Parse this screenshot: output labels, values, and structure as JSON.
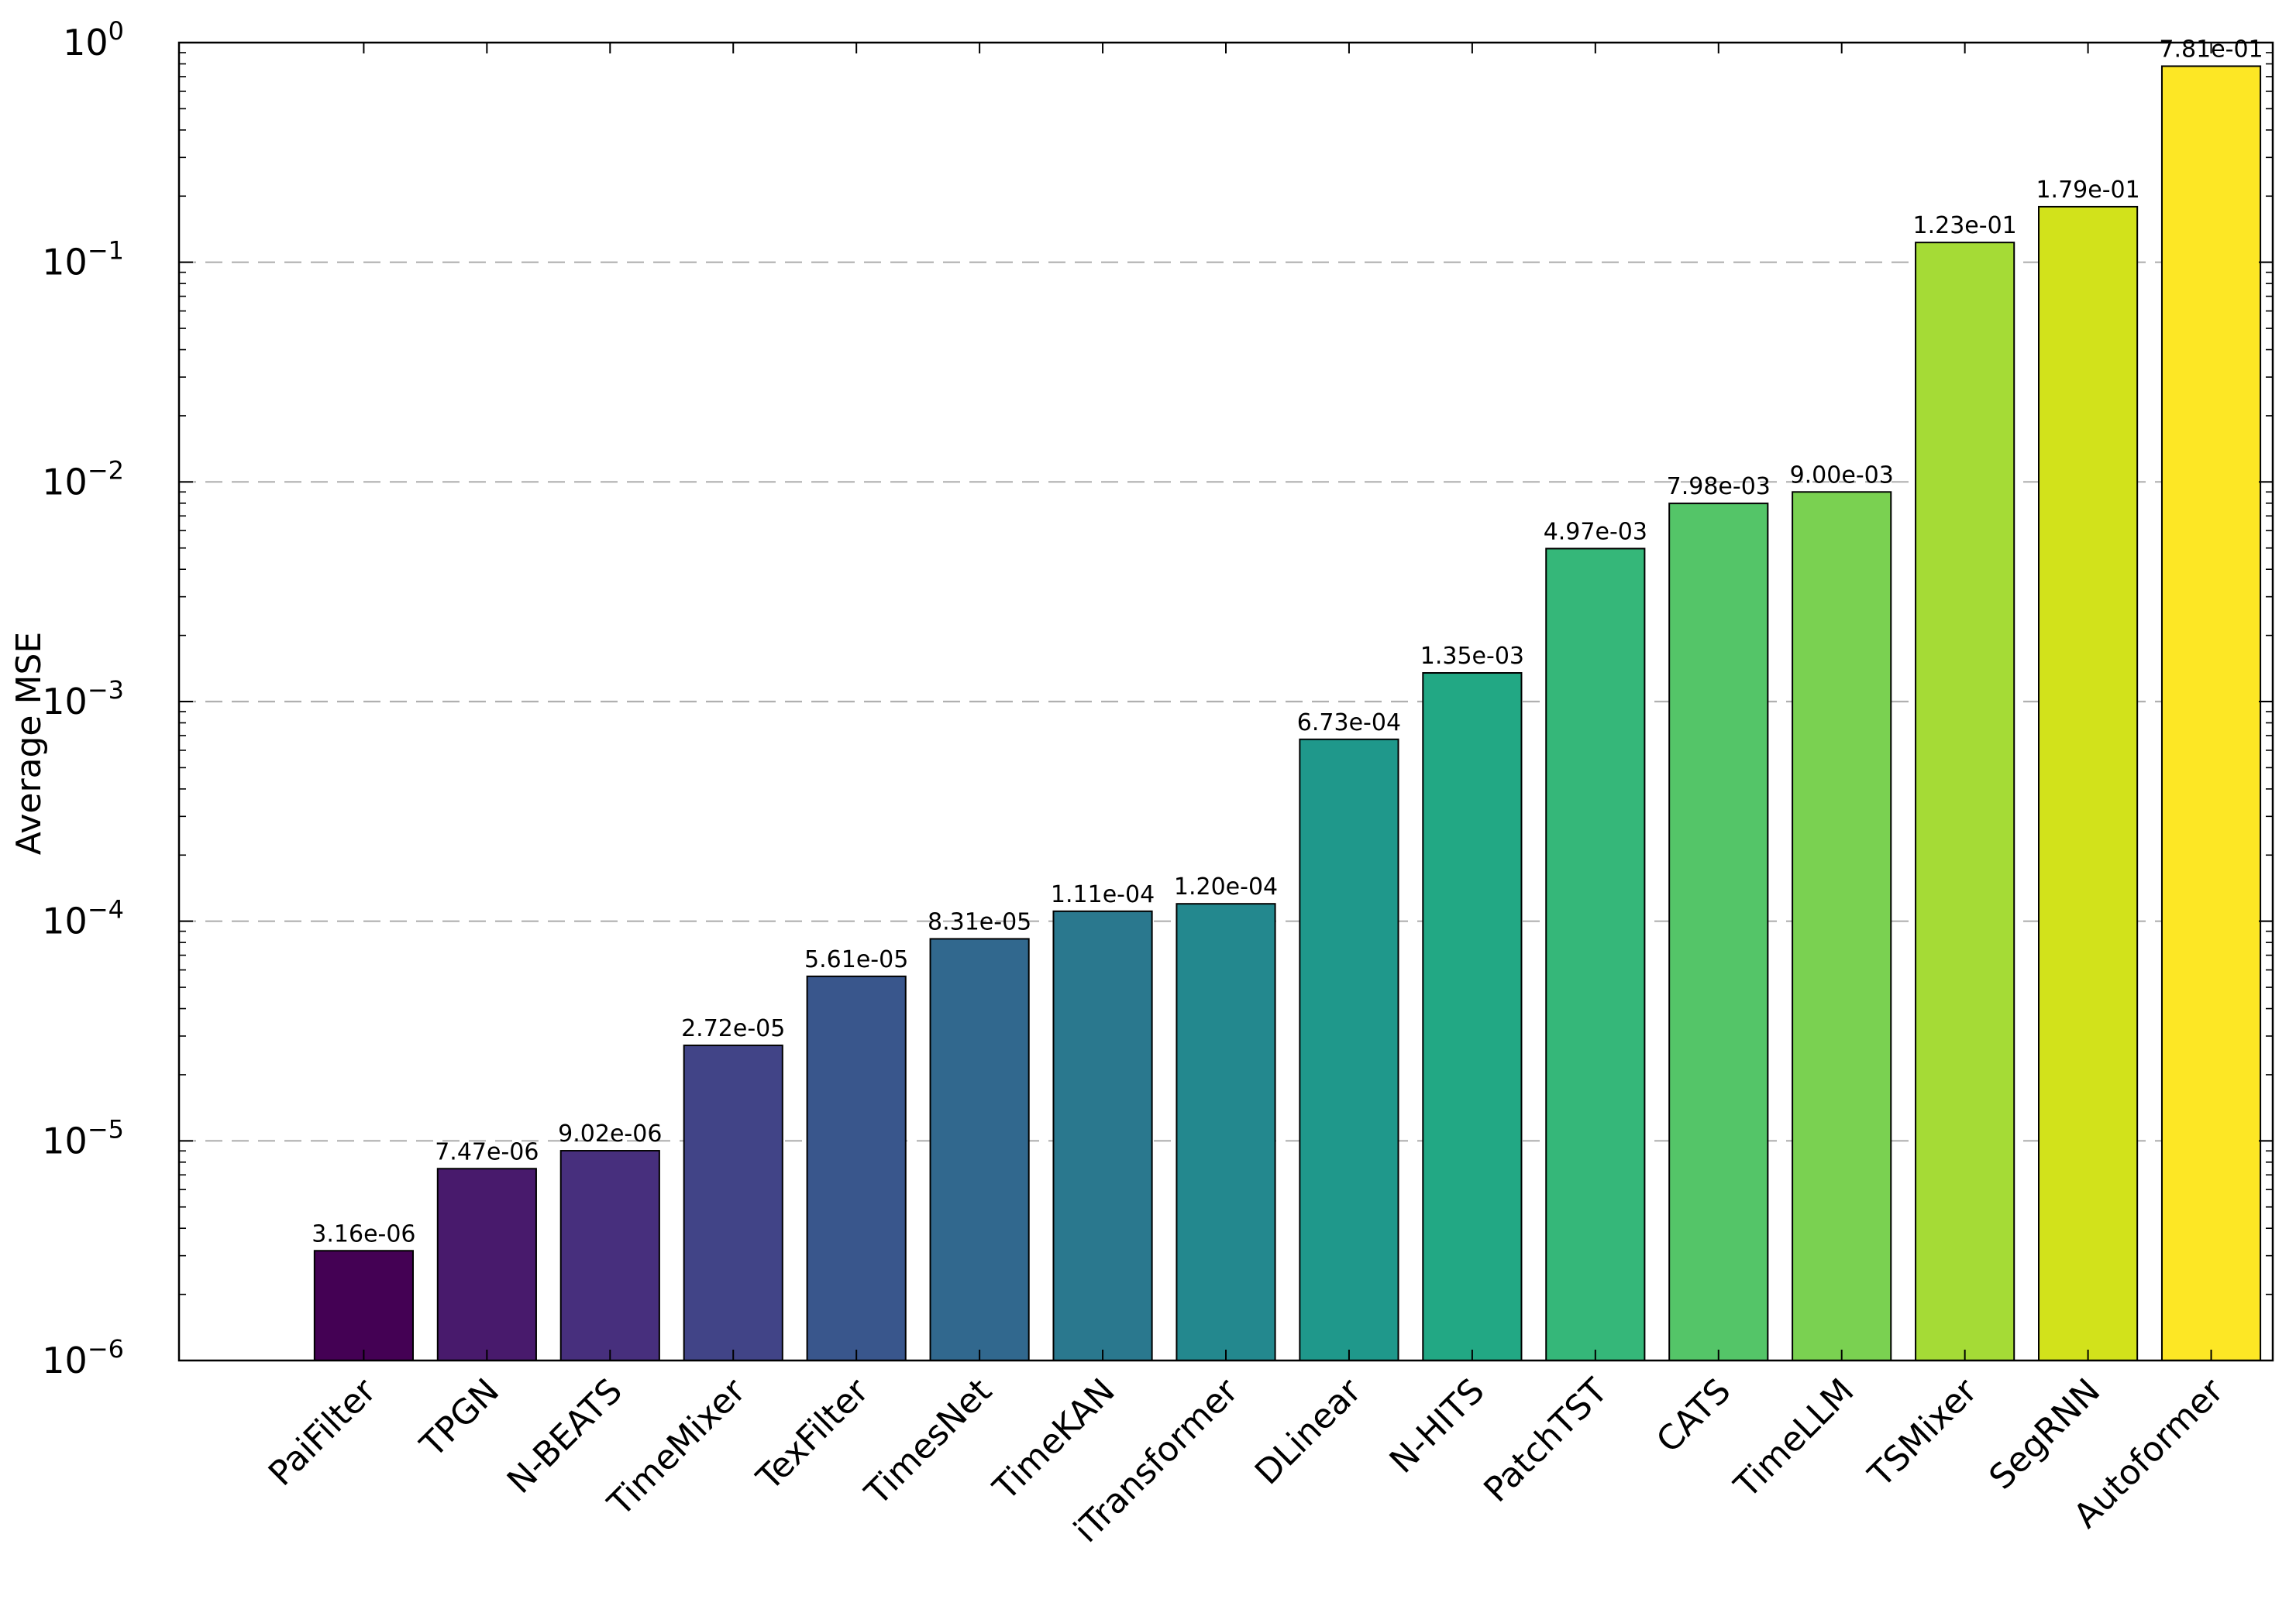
{
  "chart_data": {
    "type": "bar",
    "title": "",
    "xlabel": "",
    "ylabel": "Average MSE",
    "yscale": "log",
    "ylim": [
      1e-06,
      1
    ],
    "y_ticks": [
      {
        "value": 1e-06,
        "base": "10",
        "exp": "−6"
      },
      {
        "value": 1e-05,
        "base": "10",
        "exp": "−5"
      },
      {
        "value": 0.0001,
        "base": "10",
        "exp": "−4"
      },
      {
        "value": 0.001,
        "base": "10",
        "exp": "−3"
      },
      {
        "value": 0.01,
        "base": "10",
        "exp": "−2"
      },
      {
        "value": 0.1,
        "base": "10",
        "exp": "−1"
      },
      {
        "value": 1,
        "base": "10",
        "exp": "0"
      }
    ],
    "grid": "y-dashed",
    "categories": [
      "PaiFilter",
      "TPGN",
      "N-BEATS",
      "TimeMixer",
      "TexFilter",
      "TimesNet",
      "TimeKAN",
      "iTransformer",
      "DLinear",
      "N-HITS",
      "PatchTST",
      "CATS",
      "TimeLLM",
      "TSMixer",
      "SegRNN",
      "Autoformer"
    ],
    "values": [
      3.16e-06,
      7.47e-06,
      9.02e-06,
      2.72e-05,
      5.61e-05,
      8.31e-05,
      0.000111,
      0.00012,
      0.000673,
      0.00135,
      0.00497,
      0.00798,
      0.009,
      0.123,
      0.179,
      0.781
    ],
    "value_labels": [
      "3.16e-06",
      "7.47e-06",
      "9.02e-06",
      "2.72e-05",
      "5.61e-05",
      "8.31e-05",
      "1.11e-04",
      "1.20e-04",
      "6.73e-04",
      "1.35e-03",
      "4.97e-03",
      "7.98e-03",
      "9.00e-03",
      "1.23e-01",
      "1.79e-01",
      "7.81e-01"
    ],
    "colors": [
      "#440154",
      "#481a6c",
      "#472f7d",
      "#414487",
      "#39568c",
      "#31688e",
      "#2a788e",
      "#23888e",
      "#1f988b",
      "#22a884",
      "#35b779",
      "#54c568",
      "#7ad151",
      "#a5db36",
      "#d2e21b",
      "#fde725"
    ]
  }
}
